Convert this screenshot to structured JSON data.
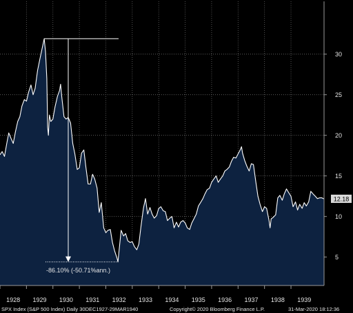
{
  "chart_data": {
    "type": "area",
    "title": "",
    "xlabel": "",
    "ylabel": "",
    "xlim": [
      1928.0,
      1940.25
    ],
    "ylim": [
      1.5,
      36.5
    ],
    "y_ticks": [
      5,
      10,
      15,
      20,
      25,
      30
    ],
    "x_tick_labels": [
      "1928",
      "1929",
      "1930",
      "1931",
      "1932",
      "1933",
      "1934",
      "1935",
      "1936",
      "1937",
      "1938",
      "1939"
    ],
    "grid": "dotted",
    "series": [
      {
        "name": "",
        "color": "#ffffff",
        "fill": "#0d2240",
        "points": [
          [
            1928.0,
            17.6
          ],
          [
            1928.08,
            18.0
          ],
          [
            1928.17,
            17.4
          ],
          [
            1928.25,
            18.9
          ],
          [
            1928.33,
            20.3
          ],
          [
            1928.42,
            19.6
          ],
          [
            1928.5,
            19.0
          ],
          [
            1928.58,
            20.4
          ],
          [
            1928.67,
            21.7
          ],
          [
            1928.75,
            22.3
          ],
          [
            1928.83,
            23.6
          ],
          [
            1928.92,
            24.4
          ],
          [
            1929.0,
            24.2
          ],
          [
            1929.08,
            25.3
          ],
          [
            1929.17,
            26.2
          ],
          [
            1929.25,
            25.0
          ],
          [
            1929.33,
            25.8
          ],
          [
            1929.42,
            28.0
          ],
          [
            1929.5,
            29.3
          ],
          [
            1929.58,
            30.5
          ],
          [
            1929.67,
            31.9
          ],
          [
            1929.72,
            30.3
          ],
          [
            1929.77,
            27.0
          ],
          [
            1929.8,
            21.0
          ],
          [
            1929.83,
            20.0
          ],
          [
            1929.87,
            22.5
          ],
          [
            1929.92,
            21.7
          ],
          [
            1930.0,
            22.0
          ],
          [
            1930.08,
            23.5
          ],
          [
            1930.17,
            24.8
          ],
          [
            1930.25,
            25.5
          ],
          [
            1930.29,
            26.3
          ],
          [
            1930.33,
            24.9
          ],
          [
            1930.42,
            22.3
          ],
          [
            1930.5,
            22.0
          ],
          [
            1930.58,
            22.2
          ],
          [
            1930.67,
            21.5
          ],
          [
            1930.75,
            19.0
          ],
          [
            1930.83,
            17.7
          ],
          [
            1930.92,
            15.8
          ],
          [
            1931.0,
            16.0
          ],
          [
            1931.08,
            17.8
          ],
          [
            1931.17,
            18.2
          ],
          [
            1931.25,
            16.0
          ],
          [
            1931.33,
            14.0
          ],
          [
            1931.42,
            14.0
          ],
          [
            1931.5,
            15.2
          ],
          [
            1931.58,
            14.6
          ],
          [
            1931.67,
            13.5
          ],
          [
            1931.75,
            10.5
          ],
          [
            1931.83,
            11.7
          ],
          [
            1931.92,
            8.6
          ],
          [
            1932.0,
            8.0
          ],
          [
            1932.08,
            8.3
          ],
          [
            1932.17,
            8.4
          ],
          [
            1932.25,
            6.8
          ],
          [
            1932.33,
            5.8
          ],
          [
            1932.42,
            4.9
          ],
          [
            1932.46,
            4.4
          ],
          [
            1932.5,
            5.8
          ],
          [
            1932.58,
            8.3
          ],
          [
            1932.67,
            7.6
          ],
          [
            1932.75,
            7.9
          ],
          [
            1932.83,
            7.0
          ],
          [
            1932.92,
            6.8
          ],
          [
            1933.0,
            6.9
          ],
          [
            1933.08,
            6.3
          ],
          [
            1933.17,
            5.9
          ],
          [
            1933.25,
            6.6
          ],
          [
            1933.33,
            8.8
          ],
          [
            1933.42,
            11.0
          ],
          [
            1933.5,
            12.2
          ],
          [
            1933.58,
            10.3
          ],
          [
            1933.67,
            11.1
          ],
          [
            1933.75,
            10.3
          ],
          [
            1933.83,
            9.8
          ],
          [
            1933.92,
            10.1
          ],
          [
            1934.0,
            11.0
          ],
          [
            1934.08,
            11.2
          ],
          [
            1934.17,
            10.7
          ],
          [
            1934.25,
            10.6
          ],
          [
            1934.33,
            9.5
          ],
          [
            1934.42,
            9.8
          ],
          [
            1934.5,
            10.0
          ],
          [
            1934.58,
            8.6
          ],
          [
            1934.67,
            9.3
          ],
          [
            1934.75,
            8.7
          ],
          [
            1934.83,
            9.3
          ],
          [
            1934.92,
            9.5
          ],
          [
            1935.0,
            9.2
          ],
          [
            1935.08,
            8.6
          ],
          [
            1935.17,
            8.4
          ],
          [
            1935.25,
            9.2
          ],
          [
            1935.33,
            9.7
          ],
          [
            1935.42,
            10.3
          ],
          [
            1935.5,
            11.3
          ],
          [
            1935.58,
            11.7
          ],
          [
            1935.67,
            12.2
          ],
          [
            1935.75,
            12.8
          ],
          [
            1935.83,
            13.3
          ],
          [
            1935.92,
            13.5
          ],
          [
            1936.0,
            14.2
          ],
          [
            1936.08,
            14.6
          ],
          [
            1936.17,
            15.0
          ],
          [
            1936.25,
            14.2
          ],
          [
            1936.33,
            14.6
          ],
          [
            1936.42,
            15.0
          ],
          [
            1936.5,
            15.6
          ],
          [
            1936.58,
            15.8
          ],
          [
            1936.67,
            16.1
          ],
          [
            1936.75,
            16.8
          ],
          [
            1936.83,
            17.3
          ],
          [
            1936.92,
            17.2
          ],
          [
            1937.0,
            17.7
          ],
          [
            1937.08,
            18.2
          ],
          [
            1937.13,
            18.6
          ],
          [
            1937.17,
            17.8
          ],
          [
            1937.25,
            16.9
          ],
          [
            1937.33,
            16.2
          ],
          [
            1937.42,
            15.6
          ],
          [
            1937.5,
            16.5
          ],
          [
            1937.58,
            16.4
          ],
          [
            1937.67,
            14.3
          ],
          [
            1937.75,
            12.5
          ],
          [
            1937.83,
            11.5
          ],
          [
            1937.92,
            10.6
          ],
          [
            1938.0,
            11.2
          ],
          [
            1938.08,
            11.0
          ],
          [
            1938.17,
            9.5
          ],
          [
            1938.21,
            8.6
          ],
          [
            1938.25,
            9.7
          ],
          [
            1938.33,
            9.9
          ],
          [
            1938.42,
            10.2
          ],
          [
            1938.5,
            12.3
          ],
          [
            1938.58,
            12.6
          ],
          [
            1938.67,
            12.0
          ],
          [
            1938.75,
            12.8
          ],
          [
            1938.83,
            13.4
          ],
          [
            1938.92,
            12.9
          ],
          [
            1939.0,
            12.5
          ],
          [
            1939.08,
            11.2
          ],
          [
            1939.17,
            11.8
          ],
          [
            1939.25,
            10.8
          ],
          [
            1939.33,
            11.5
          ],
          [
            1939.42,
            11.0
          ],
          [
            1939.5,
            11.7
          ],
          [
            1939.58,
            11.3
          ],
          [
            1939.67,
            11.8
          ],
          [
            1939.75,
            13.1
          ],
          [
            1939.83,
            12.8
          ],
          [
            1939.92,
            12.5
          ],
          [
            1940.0,
            12.2
          ],
          [
            1940.08,
            12.3
          ],
          [
            1940.17,
            12.3
          ],
          [
            1940.24,
            12.18
          ]
        ]
      }
    ],
    "last_value_label": "12.18",
    "annotation": {
      "text": "-86.10% (-50.71%ann.)",
      "peak": {
        "x": 1929.67,
        "y": 31.9
      },
      "trough": {
        "x": 1932.46,
        "y": 4.4
      },
      "drop_line_x": 1930.58
    }
  },
  "footer": {
    "left": "SPX Index (S&P 500 Index)  Daily 30DEC1927-29MAR1940",
    "copyright": "Copyright© 2020 Bloomberg Finance L.P.",
    "timestamp": "31-Mar-2020 18:12:36"
  },
  "colors": {
    "background": "#000000",
    "area_fill": "#0d2240",
    "line": "#ffffff",
    "grid": "#6a6a6a",
    "text": "#e6e6e6",
    "last_value_box": "#d9d9d9"
  }
}
